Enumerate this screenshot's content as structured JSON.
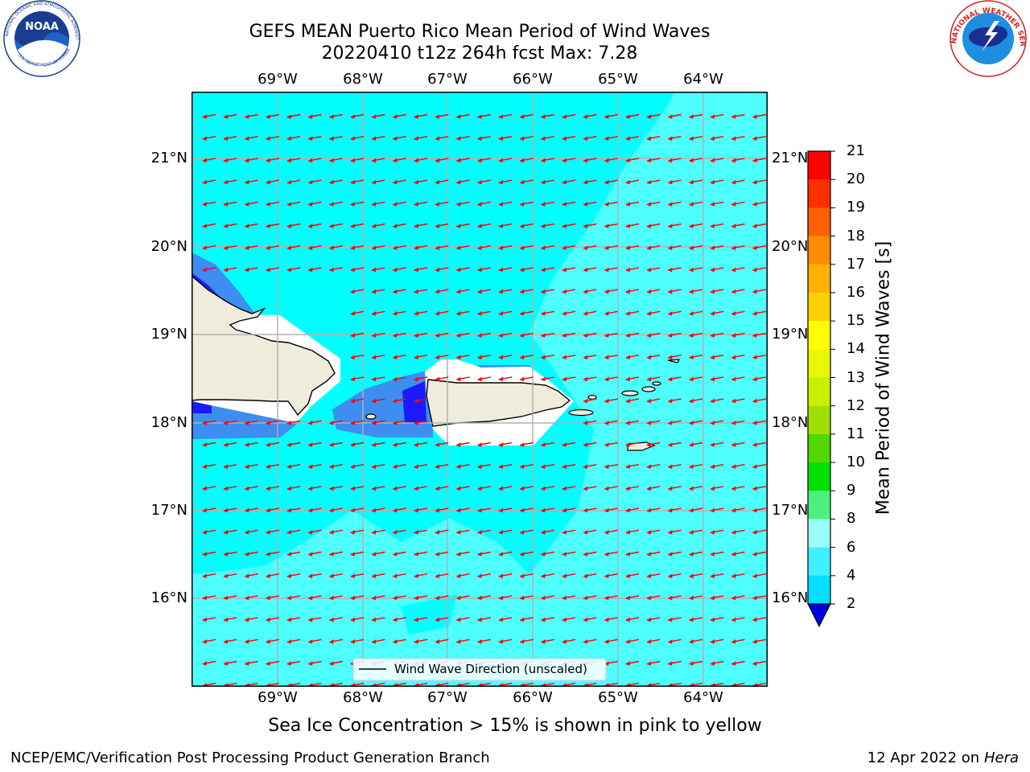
{
  "title": {
    "line1": "GEFS MEAN Puerto Rico Mean Period of Wind Waves",
    "line2": "20220410 t12z 264h fcst   Max: 7.28"
  },
  "logos": {
    "left": "NOAA",
    "left_ring_text": "NATIONAL OCEANIC AND ATMOSPHERIC ADMINISTRATION",
    "left_bottom_text": "U.S. DEPARTMENT OF COMMERCE",
    "right_ring_text": "NATIONAL WEATHER SERVICE"
  },
  "map": {
    "lon_labels": [
      "69°W",
      "68°W",
      "67°W",
      "66°W",
      "65°W",
      "64°W"
    ],
    "lat_labels": [
      "21°N",
      "20°N",
      "19°N",
      "18°N",
      "17°N",
      "16°N"
    ],
    "legend_label": "Wind Wave Direction (unscaled)",
    "colors": {
      "ocean_6_8": "#00ffff",
      "ocean_8_9": "#4dffff",
      "ocean_4_6": "#3d8ef0",
      "ocean_2_4": "#1a1aff",
      "land": "#f0ecdc",
      "arrow": "#ff0000",
      "grid": "#b0b0b0"
    }
  },
  "colorbar": {
    "label": "Mean Period of Wind Waves [s]",
    "ticks": [
      "2",
      "4",
      "6",
      "8",
      "9",
      "10",
      "11",
      "12",
      "13",
      "14",
      "15",
      "16",
      "17",
      "18",
      "19",
      "20",
      "21"
    ],
    "colors": [
      "#0000ff",
      "#00e0ff",
      "#40f0ff",
      "#99fff8",
      "#4cf080",
      "#00e000",
      "#50d800",
      "#a0e000",
      "#c8f000",
      "#e8f800",
      "#ffff00",
      "#ffd000",
      "#ffb000",
      "#ff8c00",
      "#ff6000",
      "#ff3000",
      "#ff0000"
    ],
    "under_color": "#0000e0"
  },
  "caption": "Sea Ice Concentration > 15% is shown in pink to yellow",
  "footer": {
    "left": "NCEP/EMC/Verification Post Processing Product Generation Branch",
    "right_date": "12 Apr 2022 on",
    "right_host": "Hera"
  }
}
